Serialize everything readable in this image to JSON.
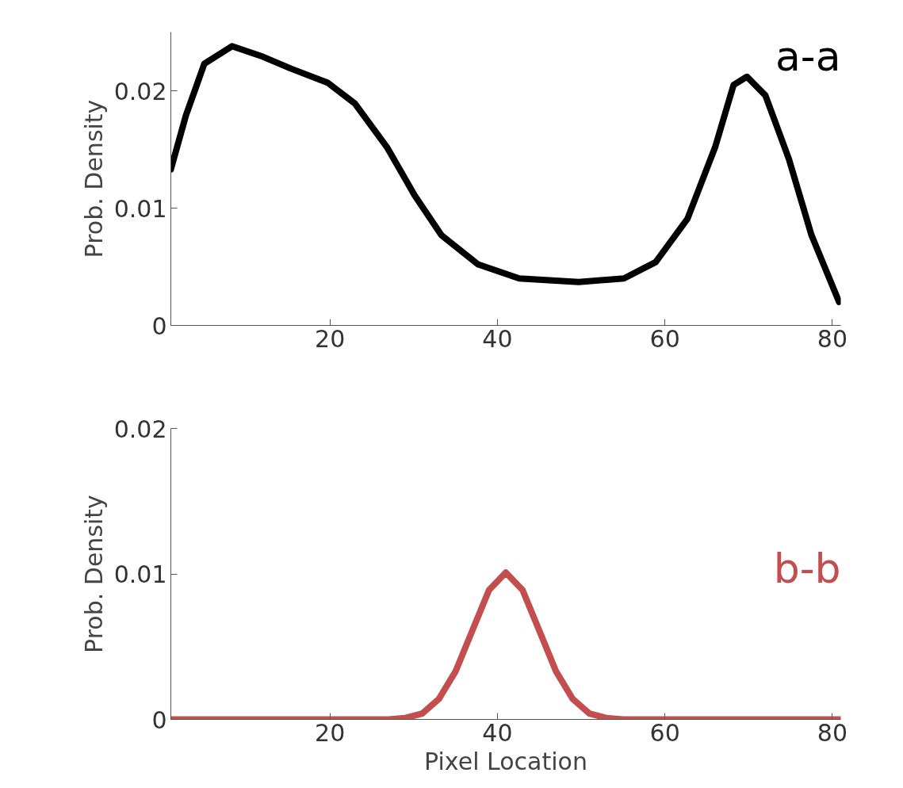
{
  "chart_data": [
    {
      "type": "line",
      "annotations": [
        "a-a"
      ],
      "ylabel": "Prob. Density",
      "series": [
        {
          "color": "#000000",
          "x": [
            1,
            2.8,
            5,
            8.3,
            12,
            15.3,
            19.7,
            23,
            26.8,
            30.1,
            33.3,
            37.7,
            42.6,
            49.7,
            55.1,
            58.9,
            62.7,
            66,
            68.2,
            69.8,
            72,
            74.8,
            77.5,
            80.8
          ],
          "values": [
            0.0133,
            0.0179,
            0.0223,
            0.0238,
            0.0229,
            0.0219,
            0.0207,
            0.0189,
            0.0152,
            0.0111,
            0.0077,
            0.0052,
            0.004,
            0.0037,
            0.004,
            0.0054,
            0.0091,
            0.0152,
            0.0205,
            0.0212,
            0.0196,
            0.0142,
            0.0077,
            0.002
          ]
        }
      ],
      "xlim": [
        1,
        81
      ],
      "ylim": [
        0,
        0.025
      ],
      "xticks": [
        20,
        40,
        60,
        80
      ],
      "yticks": [
        0,
        0.01,
        0.02
      ],
      "grid": false,
      "line_style": "solid"
    },
    {
      "type": "line",
      "annotations": [
        "b-b"
      ],
      "ylabel": "Prob. Density",
      "xlabel": "Pixel Location",
      "series": [
        {
          "color": "#c44e4e",
          "x": [
            1,
            10,
            20,
            27,
            29,
            31,
            33,
            35,
            37,
            39,
            41,
            43,
            45,
            47,
            49,
            51,
            53,
            55,
            60,
            70,
            81
          ],
          "values": [
            0,
            0,
            0,
            0,
            0.0001,
            0.0004,
            0.0014,
            0.0033,
            0.0061,
            0.0089,
            0.0101,
            0.0089,
            0.0061,
            0.0033,
            0.0014,
            0.0004,
            0.0001,
            0,
            0,
            0,
            0
          ]
        }
      ],
      "xlim": [
        1,
        81
      ],
      "ylim": [
        0,
        0.02
      ],
      "xticks": [
        20,
        40,
        60,
        80
      ],
      "yticks": [
        0,
        0.01,
        0.02
      ],
      "grid": false,
      "line_style": "solid"
    }
  ]
}
